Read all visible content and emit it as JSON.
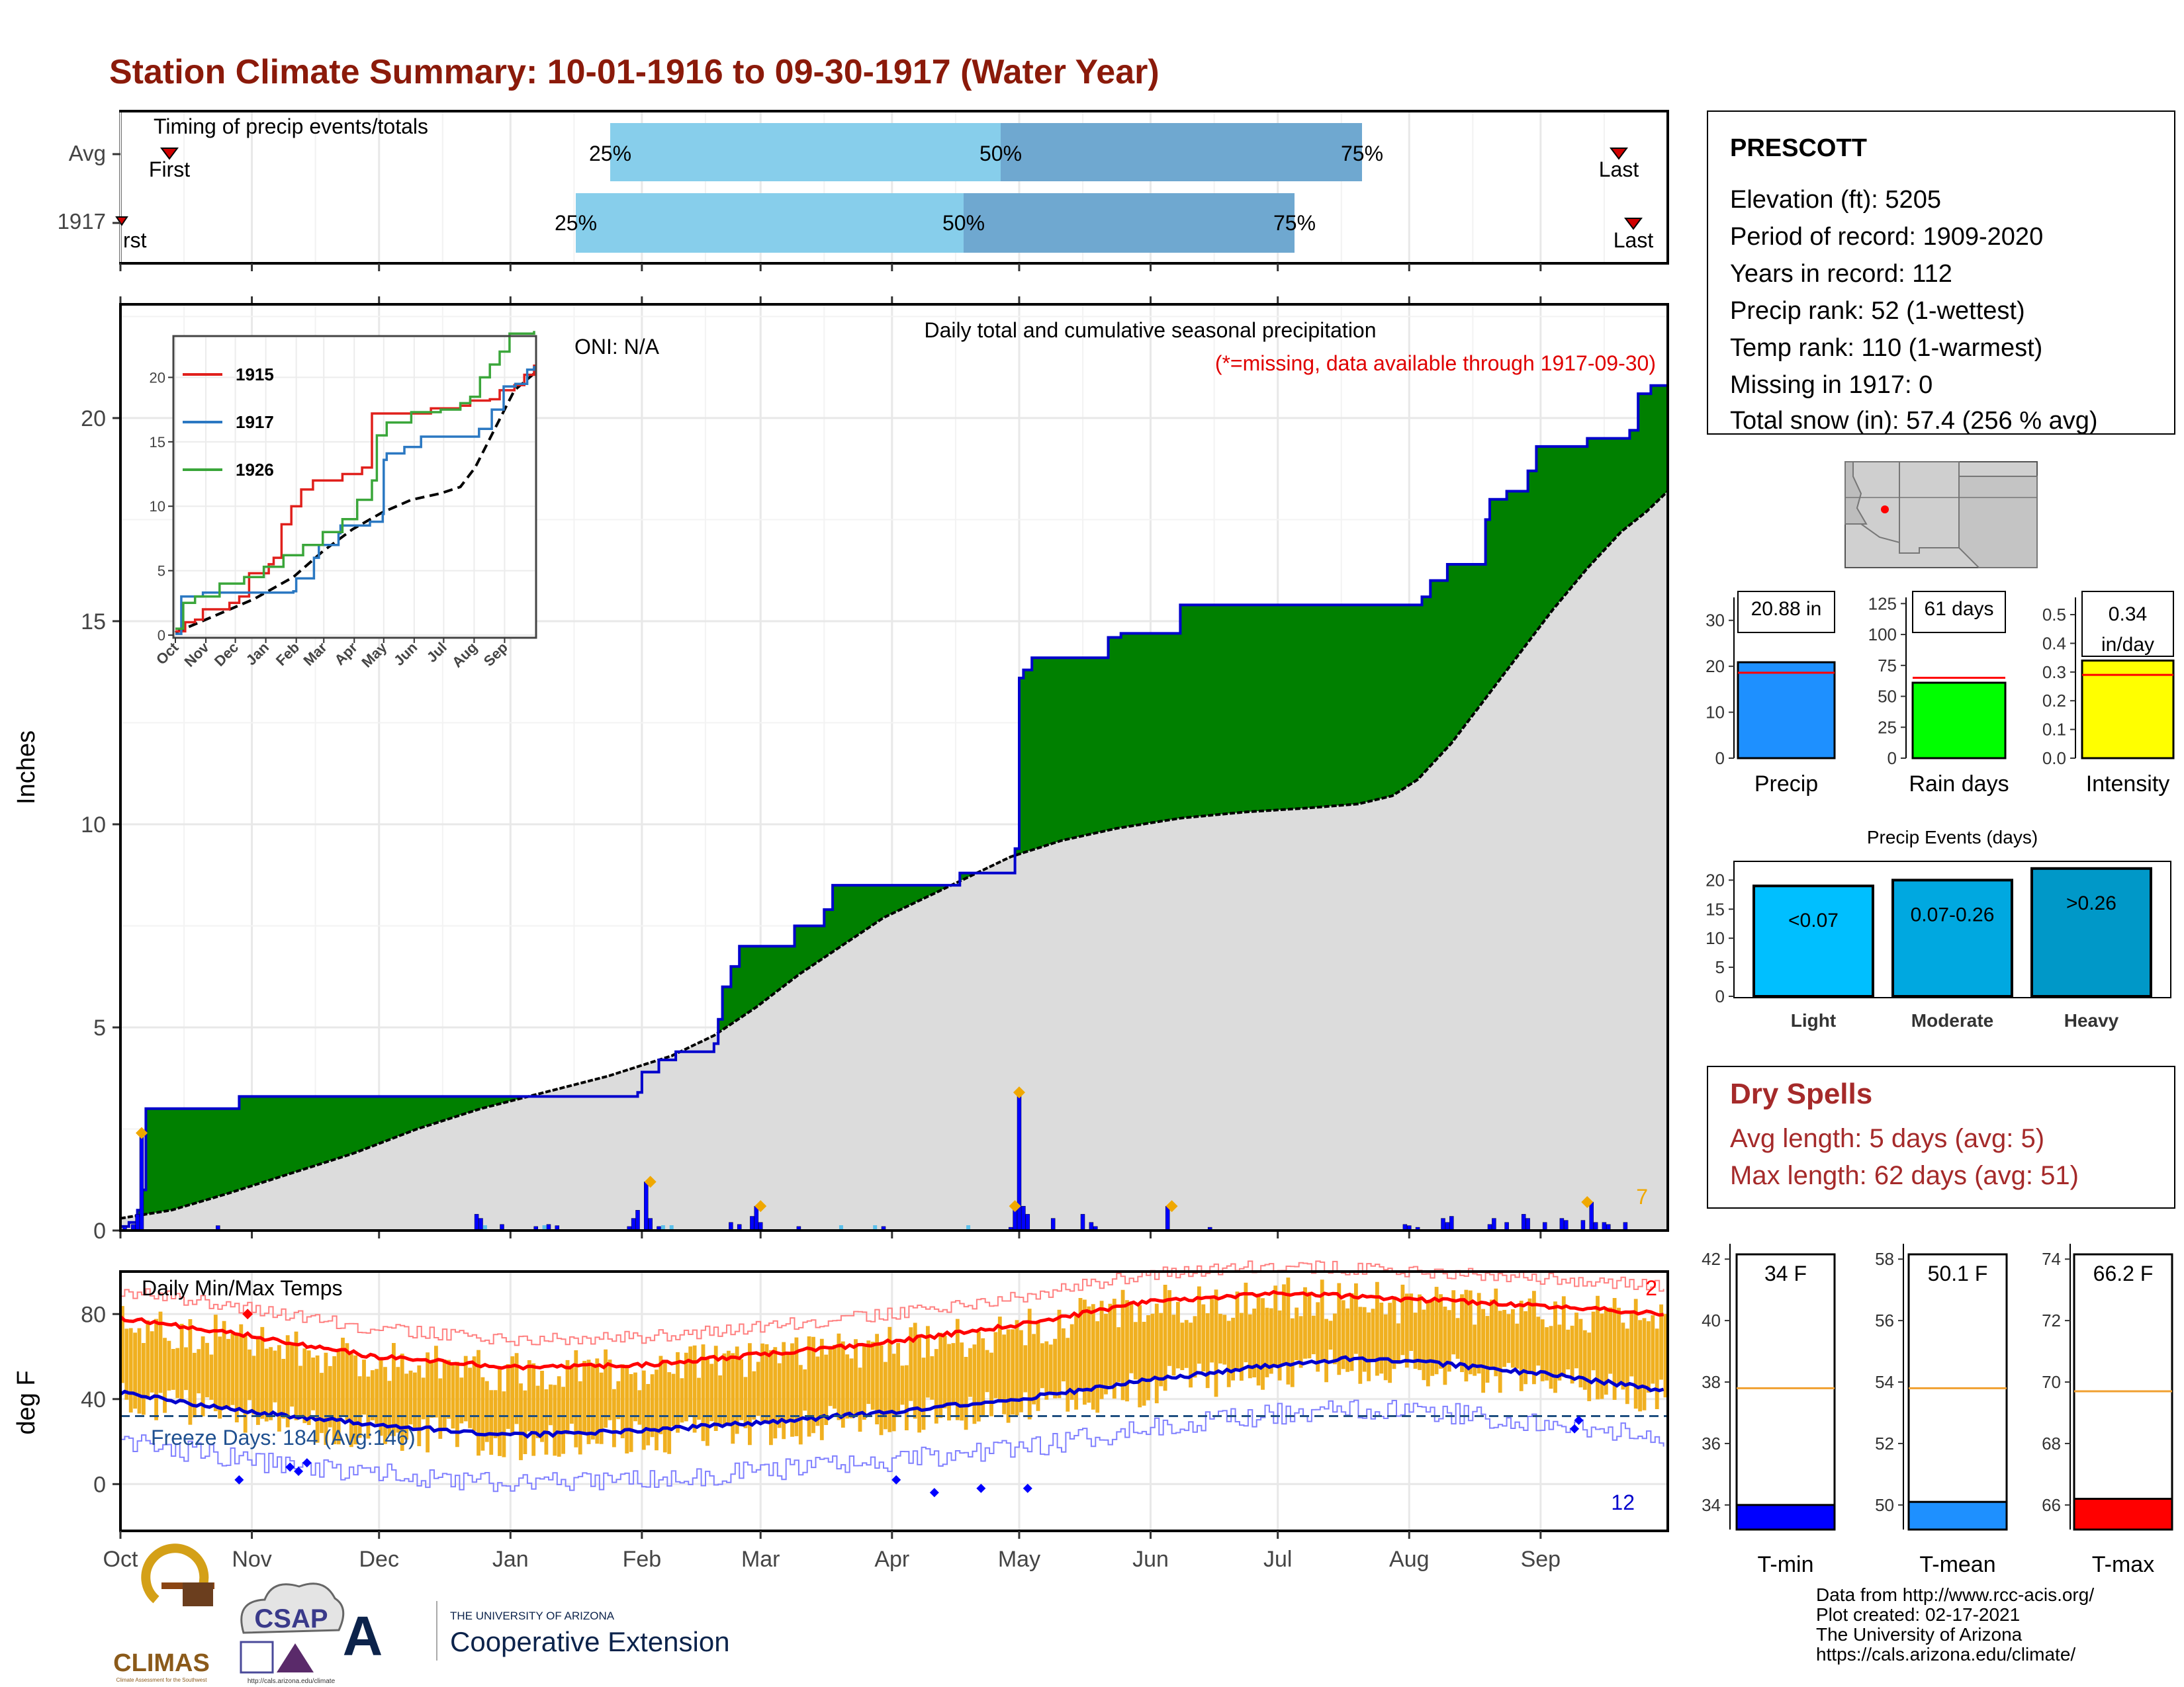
{
  "title": "Station Climate Summary: 10-01-1916 to 09-30-1917 (Water Year)",
  "colors": {
    "title": "#8b1a0a",
    "green": "#008000",
    "gray_fill": "#dcdcdc",
    "blue_line": "#0000cc",
    "brown": "#7b4a12",
    "orange": "#f0a800",
    "light_blue": "#87ceeb",
    "steel_blue": "#6fa8d0",
    "precip_bar": "#1e90ff",
    "rain_bar": "#00ff00",
    "intensity_bar": "#ffff00",
    "light_ev": "#00bfff",
    "moderate_ev": "#00a8e0",
    "heavy_ev": "#0098c8",
    "tmin_bar": "#0000ff",
    "tmean_bar": "#1e90ff",
    "tmax_bar": "#ff0000",
    "dry_text": "#a52a2a"
  },
  "timing": {
    "title": "Timing of precip events/totals",
    "row_labels": [
      "Avg",
      "1917"
    ],
    "first_label": "First",
    "first_label_cut": "rst",
    "last_label": "Last",
    "p25": "25%",
    "p50": "50%",
    "p75": "75%"
  },
  "month_labels": [
    "Oct",
    "Nov",
    "Dec",
    "Jan",
    "Feb",
    "Mar",
    "Apr",
    "May",
    "Jun",
    "Jul",
    "Aug",
    "Sep"
  ],
  "station": {
    "name": "PRESCOTT",
    "lines": [
      "Elevation (ft): 5205",
      "Period of record: 1909-2020",
      "Years in record: 112",
      "Precip rank: 52 (1-wettest)",
      "Temp rank: 110 (1-warmest)",
      "Missing in 1917: 0",
      "Total snow (in): 57.4 (256 % avg)"
    ]
  },
  "main_panel": {
    "oni": "ONI: N/A",
    "subtitle1": "Daily total and cumulative seasonal precipitation",
    "subtitle2": "(*=missing, data available through 1917-09-30)",
    "corner_count": "7",
    "ylabel": "Inches",
    "yticks": [
      "0",
      "5",
      "10",
      "15",
      "20"
    ]
  },
  "inset": {
    "legend": [
      "1915",
      "1917",
      "1926"
    ],
    "yticks": [
      "0",
      "5",
      "10",
      "15",
      "20"
    ],
    "xticks": [
      "Oct",
      "Nov",
      "Dec",
      "Jan",
      "Feb",
      "Mar",
      "Apr",
      "May",
      "Jun",
      "Jul",
      "Aug",
      "Sep"
    ]
  },
  "temp_panel": {
    "title": "Daily Min/Max Temps",
    "freeze": "Freeze Days: 184 (Avg:146)",
    "count_top": "2",
    "count_bottom": "12",
    "ylabel": "deg F",
    "yticks": [
      "0",
      "40",
      "80"
    ]
  },
  "small_bars": {
    "precip": {
      "label": "Precip",
      "value_text": "20.88 in",
      "value": 20.88,
      "avg": 18.6,
      "ymax": 35,
      "ticks": [
        "0",
        "10",
        "20",
        "30"
      ]
    },
    "rain": {
      "label": "Rain days",
      "value_text": "61 days",
      "value": 61,
      "avg": 65,
      "ymax": 130,
      "ticks": [
        "0",
        "25",
        "50",
        "75",
        "100",
        "125"
      ]
    },
    "intensity": {
      "label": "Intensity",
      "value_text": "0.34",
      "value_text2": "in/day",
      "value": 0.34,
      "avg": 0.29,
      "ymax": 0.56,
      "ticks": [
        "0.0",
        "0.1",
        "0.2",
        "0.3",
        "0.4",
        "0.5"
      ]
    }
  },
  "events": {
    "title": "Precip Events (days)",
    "ticks": [
      "0",
      "5",
      "10",
      "15",
      "20"
    ],
    "bars": [
      {
        "label": "Light",
        "cat": "<0.07",
        "value": 19
      },
      {
        "label": "Moderate",
        "cat": "0.07-0.26",
        "value": 20
      },
      {
        "label": "Heavy",
        "cat": ">0.26",
        "value": 22
      }
    ]
  },
  "dry": {
    "title": "Dry Spells",
    "avg": "Avg length: 5 days (avg: 5)",
    "max": "Max length: 62 days (avg: 51)"
  },
  "temps": {
    "tmin": {
      "label": "T-min",
      "value_text": "34 F",
      "value": 34.0,
      "avg": 37.8,
      "ymin": 33.2,
      "ymax": 42.5,
      "ticks": [
        "34",
        "36",
        "38",
        "40",
        "42"
      ]
    },
    "tmean": {
      "label": "T-mean",
      "value_text": "50.1 F",
      "value": 50.1,
      "avg": 53.8,
      "ymin": 49.2,
      "ymax": 58.5,
      "ticks": [
        "50",
        "52",
        "54",
        "56",
        "58"
      ]
    },
    "tmax": {
      "label": "T-max",
      "value_text": "66.2 F",
      "value": 66.2,
      "avg": 69.7,
      "ymin": 65.2,
      "ymax": 74.5,
      "ticks": [
        "66",
        "68",
        "70",
        "72",
        "74"
      ]
    }
  },
  "credits": [
    "Data from http://www.rcc-acis.org/",
    "Plot created: 02-17-2021",
    "The University of Arizona",
    "https://cals.arizona.edu/climate/"
  ],
  "logos": {
    "climas": "CLIMAS",
    "climas_sub": "Climate Assessment for the Southwest",
    "csap": "CSAP",
    "csap_url": "http://cals.arizona.edu/climate",
    "ua_small": "THE UNIVERSITY OF ARIZONA",
    "ua_big": "Cooperative Extension"
  },
  "chart_data": [
    {
      "type": "area",
      "title": "Daily total and cumulative seasonal precipitation",
      "ylabel": "Inches",
      "ylim": [
        0,
        22.8
      ],
      "x": [
        "Oct",
        "Nov",
        "Dec",
        "Jan",
        "Feb",
        "Mar",
        "Apr",
        "May",
        "Jun",
        "Jul",
        "Aug",
        "Sep"
      ],
      "series": [
        {
          "name": "1917",
          "values": [
            3.0,
            3.3,
            3.3,
            4.4,
            7.0,
            8.5,
            8.8,
            14.1,
            15.4,
            15.4,
            19.3,
            20.88
          ]
        }
      ],
      "daily_peaks": [
        {
          "month": "Oct",
          "value": 2.4
        },
        {
          "month": "Jan",
          "value": 1.2
        },
        {
          "month": "Feb",
          "value": 0.6
        },
        {
          "month": "Apr",
          "value": 3.4
        },
        {
          "month": "May",
          "value": 0.6
        },
        {
          "month": "Sep",
          "value": 0.7
        }
      ]
    },
    {
      "type": "line",
      "title": "Daily Min/Max Temps",
      "ylabel": "deg F",
      "x": [
        "Oct",
        "Nov",
        "Dec",
        "Jan",
        "Feb",
        "Mar",
        "Apr",
        "May",
        "Jun",
        "Jul",
        "Aug",
        "Sep"
      ],
      "series": [
        {
          "name": "avg max",
          "values": [
            78,
            68,
            58,
            55,
            57,
            63,
            69,
            78,
            87,
            90,
            86,
            83
          ]
        },
        {
          "name": "avg min",
          "values": [
            43,
            33,
            26,
            23,
            26,
            30,
            35,
            42,
            51,
            58,
            57,
            50
          ]
        }
      ],
      "freeze_line": 32
    },
    {
      "type": "bar",
      "categories": [
        "Light",
        "Moderate",
        "Heavy"
      ],
      "values": [
        19,
        20,
        22
      ],
      "title": "Precip Events (days)"
    }
  ]
}
